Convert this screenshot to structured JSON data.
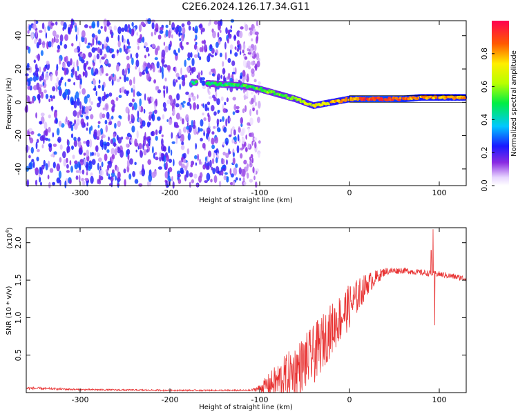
{
  "title": "C2E6.2024.126.17.34.G11",
  "chart_data": [
    {
      "type": "heatmap",
      "name": "spectrogram",
      "xlabel": "Height of straight line (km)",
      "ylabel": "Frequency (Hz)",
      "xlim": [
        -360,
        130
      ],
      "ylim": [
        -50,
        49
      ],
      "x_ticks": [
        -300,
        -200,
        -100,
        0,
        100
      ],
      "y_ticks": [
        -40,
        -20,
        0,
        20,
        40
      ],
      "colorbar": {
        "label": "Normalized spectral amplitude",
        "range": [
          0,
          1
        ],
        "ticks": [
          0.0,
          0.2,
          0.4,
          0.6,
          0.8
        ],
        "tick_labels": [
          "0.0",
          "0.2",
          "0.4",
          "0.6",
          "0.8"
        ]
      },
      "noise_region": {
        "x_range": [
          -360,
          -100
        ],
        "amplitude_range": [
          0.05,
          0.3
        ]
      },
      "signal_track": [
        {
          "x": -175,
          "y": 12,
          "amplitude": 0.45
        },
        {
          "x": -120,
          "y": 10,
          "amplitude": 0.5
        },
        {
          "x": -100,
          "y": 8,
          "amplitude": 0.55
        },
        {
          "x": -80,
          "y": 5,
          "amplitude": 0.55
        },
        {
          "x": -60,
          "y": 2,
          "amplitude": 0.6
        },
        {
          "x": -40,
          "y": -2,
          "amplitude": 0.7
        },
        {
          "x": -20,
          "y": 0,
          "amplitude": 0.75
        },
        {
          "x": 0,
          "y": 2,
          "amplitude": 0.8
        },
        {
          "x": 20,
          "y": 2,
          "amplitude": 0.9
        },
        {
          "x": 40,
          "y": 2,
          "amplitude": 0.9
        },
        {
          "x": 60,
          "y": 2,
          "amplitude": 0.85
        },
        {
          "x": 80,
          "y": 3,
          "amplitude": 0.8
        },
        {
          "x": 100,
          "y": 3,
          "amplitude": 0.8
        },
        {
          "x": 130,
          "y": 3,
          "amplitude": 0.8
        }
      ]
    },
    {
      "type": "line",
      "name": "snr",
      "xlabel": "Height of straight line (km)",
      "ylabel": "SNR (10 * v/v)",
      "scale_label": "(x10",
      "scale_exponent": "4",
      "scale_suffix": ")",
      "xlim": [
        -360,
        130
      ],
      "ylim": [
        0,
        2.2
      ],
      "x_ticks": [
        -300,
        -200,
        -100,
        0,
        100
      ],
      "y_ticks": [
        0.5,
        1.0,
        1.5,
        2.0
      ],
      "y_tick_labels": [
        "0.5",
        "1.0",
        "1.5",
        "2.0"
      ],
      "color": "#e83232",
      "envelope": [
        {
          "x": -360,
          "base": 0.06,
          "noise": 0.02
        },
        {
          "x": -300,
          "base": 0.04,
          "noise": 0.01
        },
        {
          "x": -200,
          "base": 0.03,
          "noise": 0.01
        },
        {
          "x": -110,
          "base": 0.03,
          "noise": 0.01
        },
        {
          "x": -100,
          "base": 0.06,
          "noise": 0.05
        },
        {
          "x": -80,
          "base": 0.15,
          "noise": 0.25
        },
        {
          "x": -60,
          "base": 0.3,
          "noise": 0.35
        },
        {
          "x": -40,
          "base": 0.5,
          "noise": 0.4
        },
        {
          "x": -20,
          "base": 0.85,
          "noise": 0.35
        },
        {
          "x": 0,
          "base": 1.15,
          "noise": 0.3
        },
        {
          "x": 20,
          "base": 1.45,
          "noise": 0.15
        },
        {
          "x": 40,
          "base": 1.62,
          "noise": 0.05
        },
        {
          "x": 60,
          "base": 1.63,
          "noise": 0.04
        },
        {
          "x": 80,
          "base": 1.6,
          "noise": 0.04
        },
        {
          "x": 100,
          "base": 1.58,
          "noise": 0.04
        },
        {
          "x": 130,
          "base": 1.52,
          "noise": 0.04
        }
      ],
      "spikes": [
        {
          "x": 93,
          "y": 2.18
        },
        {
          "x": 95,
          "y": 0.9
        },
        {
          "x": 91,
          "y": 1.9
        }
      ]
    }
  ]
}
